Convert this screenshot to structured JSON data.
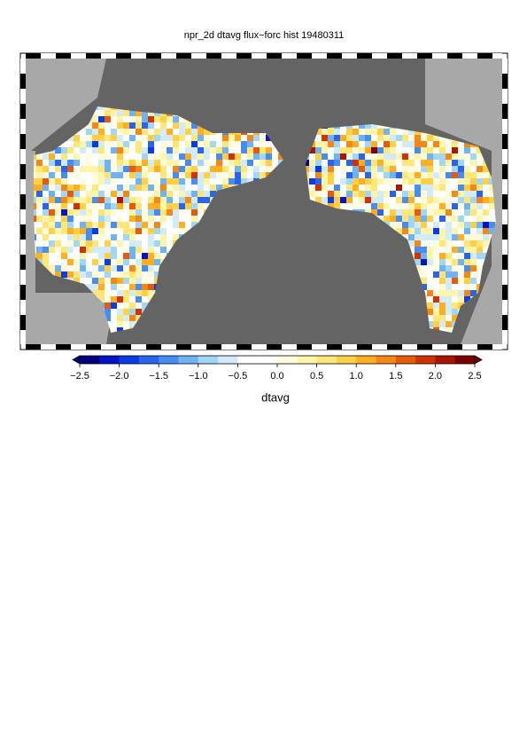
{
  "title": "npr_2d dtavg flux−forc hist 19480311",
  "colorbar": {
    "label": "dtavg",
    "range": [
      -2.5,
      2.5
    ],
    "ticks": [
      {
        "value": -2.5,
        "label": "−2.5"
      },
      {
        "value": -2.0,
        "label": "−2.0"
      },
      {
        "value": -1.5,
        "label": "−1.5"
      },
      {
        "value": -1.0,
        "label": "−1.0"
      },
      {
        "value": -0.5,
        "label": "−0.5"
      },
      {
        "value": 0,
        "label": "0.0"
      },
      0.5,
      {
        "value": 1.0,
        "label": "1.0"
      },
      1.5,
      {
        "value": 2.0,
        "label": "2.0"
      },
      2.5
    ],
    "colors": [
      "#00007f",
      "#0014c8",
      "#0a3ce6",
      "#2864f0",
      "#468cf5",
      "#6eb4f5",
      "#a0d7f5",
      "#d2ebf8",
      "#ffffff",
      "#ffffff",
      "#fffbdc",
      "#fff5aa",
      "#ffe678",
      "#ffd046",
      "#ffaf1e",
      "#f58714",
      "#e65a0a",
      "#d23200",
      "#aa1400",
      "#7d0000"
    ]
  }
}
